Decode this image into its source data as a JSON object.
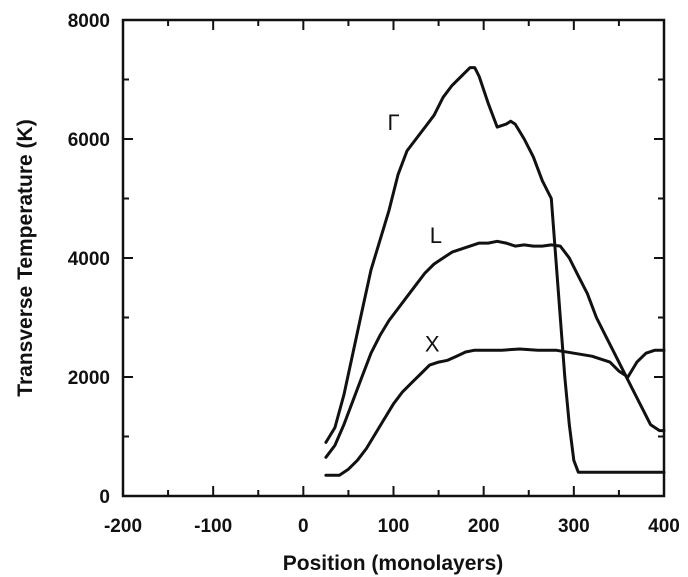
{
  "chart_data": {
    "type": "line",
    "title": "",
    "xlabel": "Position (monolayers)",
    "ylabel": "Transverse Temperature (K)",
    "xlim": [
      -200,
      400
    ],
    "ylim": [
      0,
      8000
    ],
    "x_ticks": [
      -200,
      -100,
      0,
      100,
      200,
      300,
      400
    ],
    "y_ticks": [
      0,
      2000,
      4000,
      6000,
      8000
    ],
    "x_tick_labels": [
      "-200",
      "-100",
      "0",
      "100",
      "200",
      "300",
      "400"
    ],
    "y_tick_labels": [
      "0",
      "2000",
      "4000",
      "6000",
      "8000"
    ],
    "grid": false,
    "legend": "none",
    "series": [
      {
        "name": "Γ",
        "label_at": [
          100,
          6150
        ],
        "x": [
          25,
          35,
          45,
          55,
          65,
          75,
          85,
          95,
          105,
          115,
          125,
          135,
          145,
          155,
          165,
          175,
          185,
          190,
          195,
          205,
          215,
          225,
          230,
          235,
          245,
          255,
          265,
          275,
          285,
          290,
          295,
          300,
          305,
          310,
          320,
          340,
          360,
          380,
          400
        ],
        "y": [
          900,
          1150,
          1700,
          2400,
          3100,
          3800,
          4300,
          4800,
          5400,
          5800,
          6000,
          6200,
          6400,
          6700,
          6900,
          7050,
          7200,
          7200,
          7050,
          6600,
          6200,
          6250,
          6300,
          6250,
          6000,
          5700,
          5300,
          5000,
          3000,
          2000,
          1200,
          600,
          400,
          400,
          400,
          400,
          400,
          400,
          400
        ]
      },
      {
        "name": "L",
        "label_at": [
          147,
          4250
        ],
        "x": [
          25,
          35,
          45,
          55,
          65,
          75,
          85,
          95,
          105,
          115,
          125,
          135,
          145,
          155,
          165,
          175,
          185,
          195,
          205,
          215,
          225,
          235,
          245,
          255,
          265,
          275,
          285,
          295,
          305,
          315,
          325,
          335,
          345,
          355,
          365,
          375,
          385,
          395,
          400
        ],
        "y": [
          650,
          850,
          1200,
          1600,
          2000,
          2400,
          2700,
          2950,
          3150,
          3350,
          3550,
          3750,
          3900,
          4000,
          4100,
          4150,
          4200,
          4250,
          4250,
          4280,
          4250,
          4200,
          4220,
          4200,
          4200,
          4220,
          4200,
          4000,
          3700,
          3400,
          3000,
          2700,
          2400,
          2100,
          1800,
          1500,
          1200,
          1100,
          1100
        ]
      },
      {
        "name": "X",
        "label_at": [
          143,
          2430
        ],
        "x": [
          25,
          40,
          50,
          60,
          70,
          80,
          90,
          100,
          110,
          120,
          130,
          140,
          150,
          160,
          170,
          180,
          190,
          200,
          220,
          240,
          260,
          280,
          300,
          320,
          340,
          350,
          360,
          370,
          380,
          390,
          400
        ],
        "y": [
          350,
          350,
          450,
          600,
          800,
          1050,
          1300,
          1550,
          1750,
          1900,
          2050,
          2200,
          2250,
          2280,
          2350,
          2420,
          2450,
          2450,
          2450,
          2470,
          2450,
          2450,
          2400,
          2350,
          2250,
          2100,
          2000,
          2250,
          2400,
          2450,
          2450
        ]
      }
    ]
  }
}
